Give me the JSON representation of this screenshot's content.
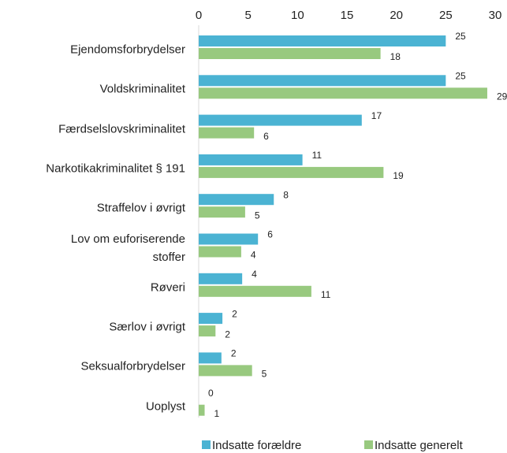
{
  "chart_data": {
    "type": "barh",
    "categories": [
      "Ejendomsforbrydelser",
      "Voldskriminalitet",
      "Færdselslovskriminalitet",
      "Narkotikakriminalitet § 191",
      "Straffelov i øvrigt",
      "Lov om euforiserende\nstoffer",
      "Røveri",
      "Særlov i øvrigt",
      "Seksualforbrydelser",
      "Uoplyst"
    ],
    "series": [
      {
        "name": "Indsatte forældre",
        "color": "#4bb3d3",
        "values": [
          25.0,
          25.0,
          16.5,
          10.5,
          7.6,
          6.0,
          4.4,
          2.4,
          2.3,
          0
        ],
        "value_labels": [
          "25",
          "25",
          "17",
          "11",
          "8",
          "6",
          "4",
          "2",
          "2",
          "0"
        ]
      },
      {
        "name": "Indsatte generelt",
        "color": "#98c97f",
        "values": [
          18.4,
          29.2,
          5.6,
          18.7,
          4.7,
          4.3,
          11.4,
          1.7,
          5.4,
          0.6
        ],
        "value_labels": [
          "18",
          "29",
          "6",
          "19",
          "5",
          "4",
          "11",
          "2",
          "5",
          "1"
        ]
      }
    ],
    "xlim": [
      0,
      30
    ],
    "xticks": [
      0,
      5,
      10,
      15,
      20,
      25,
      30
    ],
    "grid": false,
    "legend": "bottom"
  }
}
